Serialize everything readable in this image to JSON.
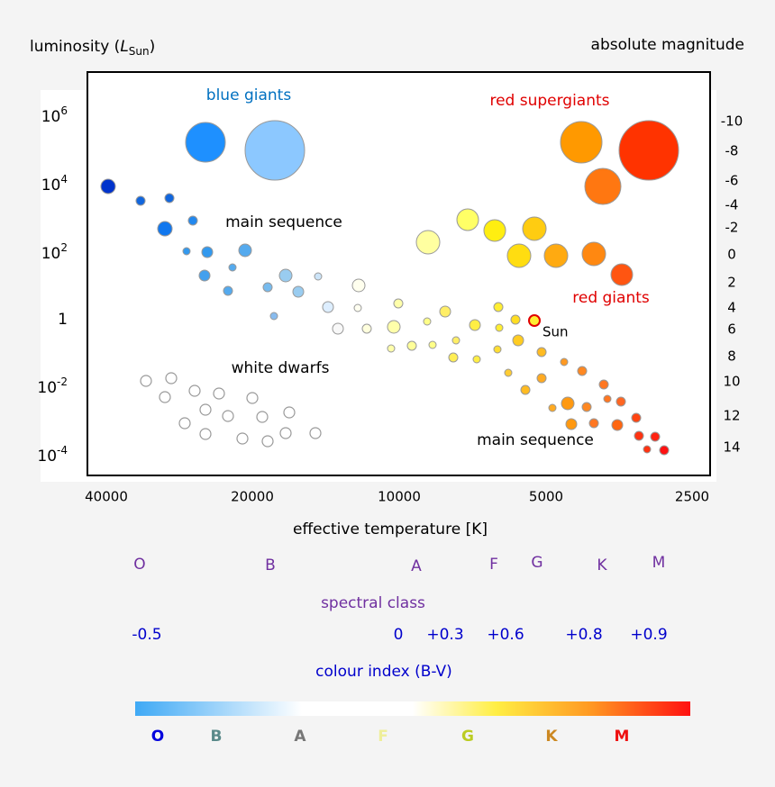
{
  "header": {
    "y_axis_title": {
      "text": "luminosity (",
      "symbol": "L",
      "subscript": "Sun",
      "close": ")"
    },
    "right_axis_title": "absolute magnitude"
  },
  "left_ticks": [
    {
      "base": "10",
      "exponent": "6"
    },
    {
      "base": "10",
      "exponent": "4"
    },
    {
      "base": "10",
      "exponent": "2"
    },
    {
      "base": "1",
      "exponent": ""
    },
    {
      "base": "10",
      "exponent": "-2"
    },
    {
      "base": "10",
      "exponent": "-4"
    }
  ],
  "right_ticks": [
    "-10",
    "-8",
    "-6",
    "-4",
    "-2",
    "0",
    "2",
    "4",
    "6",
    "8",
    "10",
    "12",
    "14"
  ],
  "x_ticks": [
    "40000",
    "20000",
    "10000",
    "5000",
    "2500"
  ],
  "x_axis_title": "effective temperature [K]",
  "regions": {
    "blue_giants": "blue giants",
    "red_supergiants": "red supergiants",
    "main_sequence_upper": "main sequence",
    "red_giants": "red giants",
    "sun": "Sun",
    "white_dwarfs": "white dwarfs",
    "main_sequence_lower": "main sequence"
  },
  "spectral_classes": [
    "O",
    "B",
    "A",
    "F",
    "G",
    "K",
    "M"
  ],
  "spectral_class_title": "spectral class",
  "colour_indices": [
    "-0.5",
    "0",
    "+0.3",
    "+0.6",
    "+0.8",
    "+0.9"
  ],
  "colour_index_title": "colour index (B-V)",
  "gradient_letters": [
    "O",
    "B",
    "A",
    "F",
    "G",
    "K",
    "M"
  ]
}
